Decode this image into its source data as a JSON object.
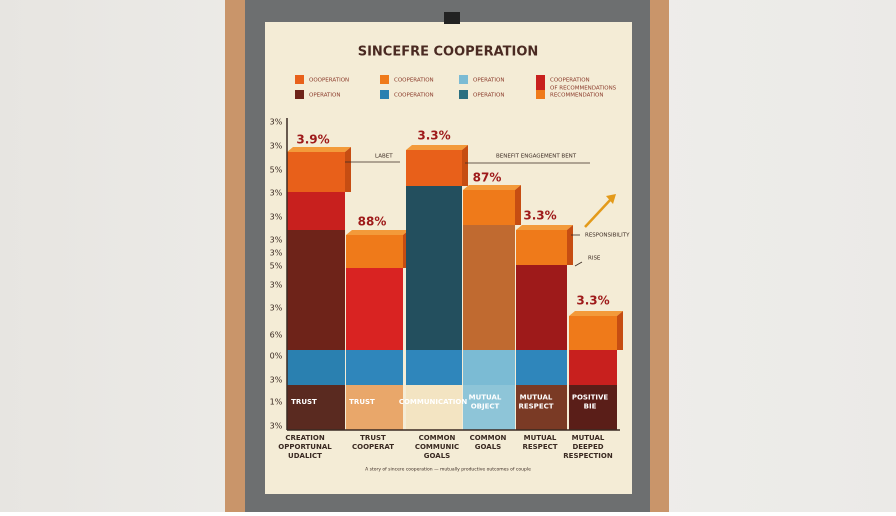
{
  "poster": {
    "title": "SINCEFRE COOPERATION",
    "legend": [
      "OOOPERATION",
      "COOPERATION",
      "OPERATION",
      "COOPERATION",
      "OPERATION",
      "COOPERATION",
      "OPERATION",
      "OF RECOMMENDATIONS",
      "RECOMMENDATION"
    ],
    "y_labels": [
      "3%",
      "3%",
      "5%",
      "3%",
      "3%",
      "3%",
      "3%",
      "5%",
      "3%",
      "3%",
      "6%",
      "0%",
      "3%",
      "1%",
      "3%"
    ],
    "value_labels": [
      "3.9%",
      "88%",
      "3.3%",
      "87%",
      "3.3%",
      "3.3%"
    ],
    "annotations": [
      "LABET",
      "BENEFIT ENGAGEMENT BENT",
      "RESPONSIBILITY",
      "RISE"
    ],
    "bar_labels": [
      [
        "TRUST"
      ],
      [
        "TRUST"
      ],
      [
        "COMMUNICATION"
      ],
      [
        "MUTUAL",
        "OBJECT"
      ],
      [
        "MUTUAL",
        "RESPECT"
      ],
      [
        "POSITIVE",
        "BIE"
      ]
    ],
    "categories": [
      [
        "CREATION",
        "OPPORTUNAL",
        "UDALICT"
      ],
      [
        "TRUST",
        "COOPERAT"
      ],
      [
        "COMMON",
        "COMMUNIC",
        "GOALS"
      ],
      [
        "COMMON",
        "GOALS"
      ],
      [
        "MUTUAL",
        "RESPECT"
      ],
      [
        "MUTUAL",
        "DEEPED",
        "RESPECTION"
      ]
    ],
    "footnote": "A story of sincere cooperation — mutually productive outcomes of couple"
  }
}
